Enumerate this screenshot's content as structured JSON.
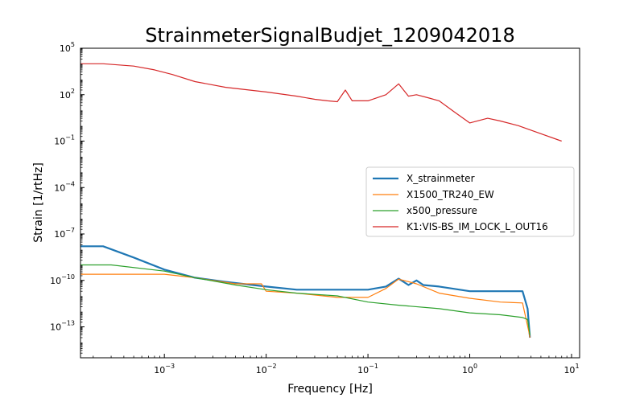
{
  "chart_data": {
    "type": "line",
    "title": "StrainmeterSignalBudjet_1209042018",
    "xlabel": "Frequency [Hz]",
    "ylabel": "Strain [1/rtHz]",
    "xscale": "log",
    "yscale": "log",
    "xlim": [
      0.00015,
      12
    ],
    "ylim": [
      1e-15,
      100000
    ],
    "x_ticks": [
      {
        "value": 0.001,
        "label": "10^-3"
      },
      {
        "value": 0.01,
        "label": "10^-2"
      },
      {
        "value": 0.1,
        "label": "10^-1"
      },
      {
        "value": 1,
        "label": "10^0"
      },
      {
        "value": 10,
        "label": "10^1"
      }
    ],
    "y_ticks": [
      {
        "value": 1e-13,
        "label": "10^-13"
      },
      {
        "value": 1e-10,
        "label": "10^-10"
      },
      {
        "value": 1e-07,
        "label": "10^-7"
      },
      {
        "value": 0.0001,
        "label": "10^-4"
      },
      {
        "value": 0.1,
        "label": "10^-1"
      },
      {
        "value": 100,
        "label": "10^2"
      },
      {
        "value": 100000,
        "label": "10^5"
      }
    ],
    "grid": false,
    "legend_position": "center-right",
    "series": [
      {
        "name": "X_strainmeter",
        "color": "#1f77b4",
        "x": [
          0.00015,
          0.00025,
          0.0005,
          0.001,
          0.002,
          0.004,
          0.01,
          0.02,
          0.05,
          0.1,
          0.15,
          0.2,
          0.25,
          0.3,
          0.35,
          0.5,
          1.0,
          2.0,
          3.3,
          3.7,
          3.9
        ],
        "y": [
          1.6e-08,
          1.6e-08,
          3e-09,
          5e-10,
          1.5e-10,
          8e-11,
          4e-11,
          2.5e-11,
          2.5e-11,
          2.5e-11,
          4e-11,
          1.3e-10,
          5e-11,
          1e-10,
          5e-11,
          4e-11,
          2e-11,
          2e-11,
          2e-11,
          1.5e-12,
          2e-14
        ]
      },
      {
        "name": "X1500_TR240_EW",
        "color": "#ff7f0e",
        "x": [
          0.00015,
          0.001,
          0.002,
          0.005,
          0.009,
          0.01,
          0.02,
          0.05,
          0.1,
          0.15,
          0.2,
          0.3,
          0.5,
          1.0,
          2.0,
          3.3,
          3.8,
          3.9
        ],
        "y": [
          2.5e-10,
          2.5e-10,
          1.5e-10,
          6e-11,
          6e-11,
          2e-11,
          1.5e-11,
          8e-12,
          8e-12,
          3e-11,
          1.2e-10,
          6e-11,
          1.5e-11,
          7e-12,
          4e-12,
          3.5e-12,
          5e-14,
          2e-14
        ]
      },
      {
        "name": "x500_pressure",
        "color": "#2ca02c",
        "x": [
          0.00015,
          0.0003,
          0.001,
          0.002,
          0.005,
          0.01,
          0.02,
          0.05,
          0.1,
          0.2,
          0.5,
          1.0,
          2.0,
          3.3,
          3.7,
          3.9
        ],
        "y": [
          1e-09,
          1e-09,
          4e-10,
          1.5e-10,
          5e-11,
          2.5e-11,
          1.5e-11,
          1e-11,
          4e-12,
          2.5e-12,
          1.5e-12,
          8e-13,
          6e-13,
          4e-13,
          3e-13,
          3e-14
        ]
      },
      {
        "name": "K1:VIS-BS_IM_LOCK_L_OUT16",
        "color": "#d62728",
        "x": [
          0.00015,
          0.00025,
          0.0005,
          0.0008,
          0.0012,
          0.002,
          0.004,
          0.01,
          0.02,
          0.03,
          0.04,
          0.05,
          0.06,
          0.07,
          0.1,
          0.15,
          0.2,
          0.25,
          0.3,
          0.4,
          0.5,
          0.7,
          1.0,
          1.5,
          2.0,
          3.0,
          5.0,
          8.0
        ],
        "y": [
          10000,
          10000,
          7000,
          4000,
          2000,
          700,
          300,
          150,
          80,
          50,
          40,
          35,
          200,
          40,
          40,
          100,
          500,
          80,
          100,
          60,
          40,
          8,
          1.5,
          3,
          2,
          1,
          0.3,
          0.1
        ]
      }
    ]
  }
}
